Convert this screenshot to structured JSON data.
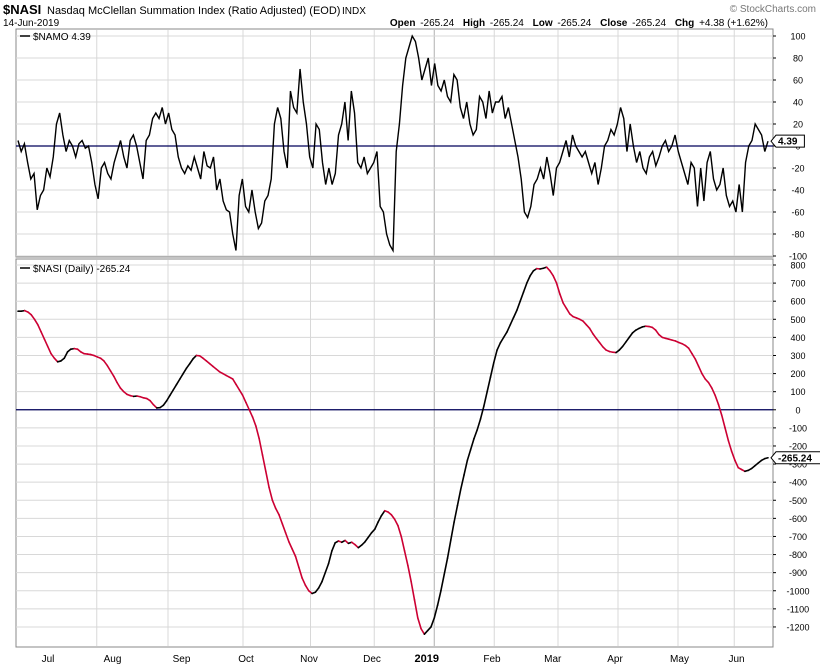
{
  "header": {
    "symbol": "$NASI",
    "description": "Nasdaq McClellan Summation Index (Ratio Adjusted) (EOD)",
    "exchange": "INDX",
    "date": "14-Jun-2019",
    "watermark": "© StockCharts.com",
    "open_label": "Open",
    "open": "-265.24",
    "high_label": "High",
    "high": "-265.24",
    "low_label": "Low",
    "low": "-265.24",
    "close_label": "Close",
    "close": "-265.24",
    "chg_label": "Chg",
    "chg": "+4.38 (+1.62%)"
  },
  "colors": {
    "up_line": "#000000",
    "down_line": "#cc0033",
    "zero_line": "#00005a",
    "grid": "#d8d8d8",
    "border": "#888888"
  },
  "chart_data": [
    {
      "type": "line",
      "legend": "$NAMO 4.39",
      "last_value_tag": "4.39",
      "ylim": [
        -100,
        100
      ],
      "yticks": [
        -100,
        -80,
        -60,
        -40,
        -20,
        0,
        20,
        40,
        60,
        80,
        100
      ],
      "reference_line": 0,
      "series": [
        {
          "values": [
            5,
            -5,
            2,
            -15,
            -30,
            -25,
            -58,
            -45,
            -40,
            -20,
            -28,
            -10,
            20,
            30,
            10,
            -5,
            5,
            0,
            -10,
            2,
            5,
            -2,
            0,
            -15,
            -35,
            -48,
            -20,
            -15,
            -25,
            -30,
            -15,
            -5,
            5,
            -10,
            -20,
            5,
            10,
            0,
            -15,
            -30,
            5,
            10,
            25,
            30,
            25,
            35,
            20,
            30,
            15,
            10,
            -10,
            -20,
            -25,
            -18,
            -22,
            -10,
            -20,
            -30,
            -5,
            -18,
            -20,
            -10,
            -40,
            -30,
            -50,
            -58,
            -60,
            -80,
            -95,
            -45,
            -30,
            -55,
            -60,
            -40,
            -60,
            -75,
            -70,
            -50,
            -45,
            -30,
            20,
            35,
            25,
            -5,
            -20,
            50,
            35,
            30,
            70,
            40,
            20,
            -10,
            -20,
            20,
            15,
            -15,
            -35,
            -20,
            -35,
            -25,
            10,
            20,
            40,
            5,
            50,
            30,
            -15,
            -20,
            -10,
            -25,
            -20,
            -15,
            -5,
            -55,
            -60,
            -80,
            -90,
            -95,
            -5,
            20,
            55,
            80,
            90,
            100,
            95,
            80,
            60,
            70,
            80,
            55,
            75,
            55,
            50,
            60,
            45,
            40,
            65,
            60,
            35,
            25,
            40,
            20,
            10,
            15,
            45,
            40,
            25,
            50,
            30,
            40,
            40,
            45,
            25,
            35,
            20,
            5,
            -10,
            -30,
            -60,
            -65,
            -55,
            -35,
            -30,
            -20,
            -30,
            -10,
            -25,
            -45,
            -20,
            -15,
            -5,
            5,
            -10,
            10,
            0,
            -5,
            -10,
            -5,
            -15,
            -25,
            -15,
            -35,
            -20,
            0,
            5,
            15,
            10,
            20,
            35,
            25,
            -5,
            20,
            0,
            -15,
            -5,
            -20,
            -25,
            -10,
            -5,
            -18,
            -10,
            0,
            5,
            -5,
            0,
            10,
            -5,
            -15,
            -25,
            -35,
            -15,
            -20,
            -55,
            -20,
            -50,
            -15,
            -5,
            -30,
            -40,
            -35,
            -20,
            -45,
            -55,
            -50,
            -60,
            -35,
            -60,
            -15,
            0,
            5,
            20,
            15,
            10,
            -5,
            4.39
          ]
        }
      ]
    },
    {
      "type": "line",
      "legend": "$NASI (Daily) -265.24",
      "last_value_tag": "-265.24",
      "ylim": [
        -1250,
        800
      ],
      "yticks": [
        -1200,
        -1100,
        -1000,
        -900,
        -800,
        -700,
        -600,
        -500,
        -400,
        -300,
        -200,
        -100,
        0,
        100,
        200,
        300,
        400,
        500,
        600,
        700,
        800
      ],
      "reference_line": 0,
      "x_ticks": [
        "Jul",
        "Aug",
        "Sep",
        "Oct",
        "Nov",
        "Dec",
        "2019",
        "Feb",
        "Mar",
        "Apr",
        "May",
        "Jun"
      ],
      "series": [
        {
          "values": [
            545,
            545,
            548,
            540,
            525,
            500,
            470,
            430,
            390,
            350,
            310,
            285,
            265,
            270,
            285,
            320,
            335,
            338,
            335,
            320,
            310,
            308,
            305,
            300,
            292,
            285,
            270,
            245,
            215,
            185,
            150,
            120,
            100,
            85,
            78,
            74,
            76,
            72,
            66,
            62,
            50,
            28,
            10,
            12,
            25,
            50,
            80,
            110,
            140,
            170,
            200,
            230,
            255,
            282,
            300,
            298,
            285,
            270,
            255,
            240,
            225,
            210,
            200,
            190,
            180,
            170,
            140,
            110,
            80,
            40,
            0,
            -40,
            -90,
            -160,
            -250,
            -340,
            -430,
            -500,
            -545,
            -580,
            -630,
            -680,
            -730,
            -770,
            -810,
            -870,
            -930,
            -970,
            -1000,
            -1015,
            -1008,
            -985,
            -950,
            -900,
            -850,
            -780,
            -735,
            -725,
            -732,
            -722,
            -738,
            -732,
            -745,
            -762,
            -748,
            -730,
            -705,
            -680,
            -660,
            -620,
            -585,
            -558,
            -565,
            -580,
            -605,
            -640,
            -700,
            -780,
            -860,
            -950,
            -1050,
            -1150,
            -1210,
            -1240,
            -1220,
            -1200,
            -1150,
            -1080,
            -1000,
            -910,
            -820,
            -720,
            -620,
            -530,
            -440,
            -360,
            -280,
            -220,
            -160,
            -110,
            -50,
            20,
            100,
            180,
            260,
            330,
            370,
            400,
            430,
            470,
            510,
            550,
            600,
            650,
            700,
            740,
            768,
            780,
            778,
            782,
            788,
            768,
            740,
            700,
            640,
            590,
            560,
            530,
            515,
            508,
            500,
            490,
            470,
            450,
            420,
            395,
            372,
            348,
            330,
            322,
            318,
            316,
            330,
            350,
            375,
            400,
            425,
            440,
            450,
            458,
            462,
            460,
            455,
            440,
            415,
            400,
            395,
            390,
            385,
            380,
            372,
            365,
            355,
            340,
            310,
            280,
            240,
            200,
            170,
            150,
            120,
            80,
            30,
            -30,
            -100,
            -170,
            -230,
            -280,
            -320,
            -330,
            -340,
            -335,
            -325,
            -310,
            -295,
            -280,
            -270,
            -265.24
          ]
        }
      ]
    }
  ]
}
